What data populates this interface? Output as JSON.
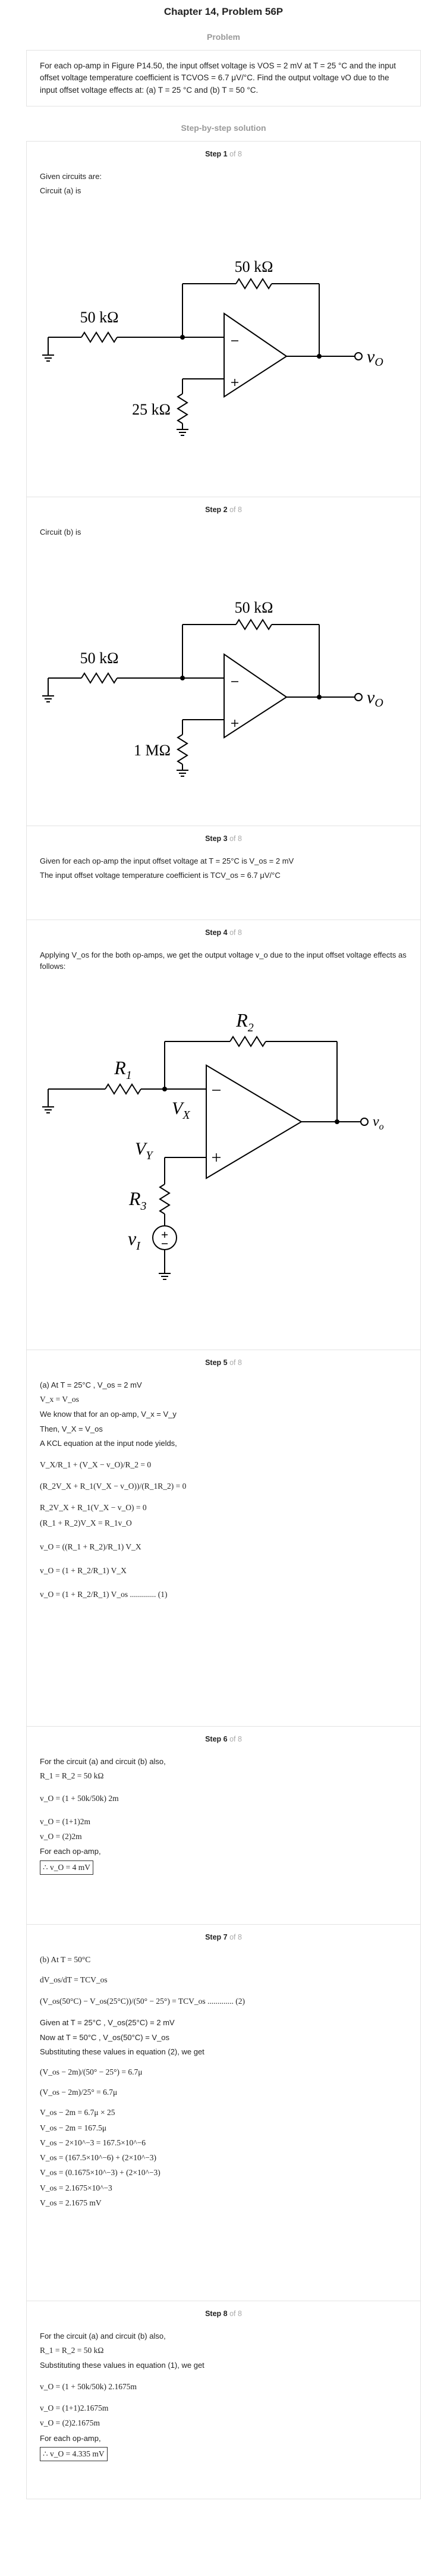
{
  "header": {
    "chapter_title": "Chapter 14, Problem 56P"
  },
  "problem": {
    "section_title": "Problem",
    "text": "For each op-amp in Figure P14.50, the input offset voltage is VOS = 2 mV at T = 25 °C and the input offset voltage temperature coefficient is TCVOS = 6.7 μV/°C. Find the output voltage vO due to the input offset voltage effects at: (a) T = 25 °C and (b) T = 50 °C."
  },
  "solution": {
    "section_title": "Step-by-step solution"
  },
  "steps": [
    {
      "label": "Step 1",
      "of": "of 8",
      "lines": [
        "Given circuits are:",
        "Circuit (a) is"
      ],
      "circuit": {
        "rf": "50 kΩ",
        "r1": "50 kΩ",
        "r3": "25 kΩ",
        "out": "v",
        "out_sub": "O"
      }
    },
    {
      "label": "Step 2",
      "of": "of 8",
      "lines": [
        "Circuit (b) is"
      ],
      "circuit": {
        "rf": "50 kΩ",
        "r1": "50 kΩ",
        "r3": "1 MΩ",
        "out": "v",
        "out_sub": "O"
      }
    },
    {
      "label": "Step 3",
      "of": "of 8",
      "lines": [
        "Given for each op-amp the input offset voltage at T = 25°C is V_os = 2 mV",
        "The input offset voltage temperature coefficient is TCV_os = 6.7 μV/°C"
      ]
    },
    {
      "label": "Step 4",
      "of": "of 8",
      "lines": [
        "Applying V_os for the both op-amps, we get the output voltage v_o due to the input offset voltage effects as follows:"
      ],
      "circuit": {
        "r2": "R",
        "r2_sub": "2",
        "r1": "R",
        "r1_sub": "1",
        "vx": "V",
        "vx_sub": "X",
        "vy": "V",
        "vy_sub": "Y",
        "r3": "R",
        "r3_sub": "3",
        "vi": "v",
        "vi_sub": "I",
        "out": "v",
        "out_sub": "o"
      }
    },
    {
      "label": "Step 5",
      "of": "of 8",
      "lines": [
        "(a) At T = 25°C , V_os = 2 mV",
        "V_x = V_os",
        "We know that for an op-amp, V_x = V_y",
        "Then, V_X = V_os",
        "A KCL equation at the input node yields,",
        "V_X/R_1 + (V_X − v_O)/R_2 = 0",
        "(R_2V_X + R_1(V_X − v_O))/(R_1R_2) = 0",
        "R_2V_X + R_1(V_X − v_O) = 0",
        "(R_1 + R_2)V_X = R_1v_O",
        "v_O = ((R_1 + R_2)/R_1) V_X",
        "v_O = (1 + R_2/R_1) V_X",
        "v_O = (1 + R_2/R_1) V_os ............. (1)"
      ]
    },
    {
      "label": "Step 6",
      "of": "of 8",
      "lines": [
        "For the circuit (a) and circuit (b) also,",
        "R_1 = R_2 = 50 kΩ",
        "v_O = (1 + 50k/50k) 2m",
        "v_O = (1+1)2m",
        "v_O = (2)2m",
        "For each op-amp,",
        "∴ v_O = 4 mV"
      ]
    },
    {
      "label": "Step 7",
      "of": "of 8",
      "lines": [
        "(b) At T = 50°C",
        "dV_os/dT = TCV_os",
        "(V_os(50°C) − V_os(25°C))/(50° − 25°) = TCV_os ............. (2)",
        "Given at T = 25°C , V_os(25°C) = 2 mV",
        "Now at T = 50°C , V_os(50°C) = V_os",
        "Substituting these values in equation (2), we get",
        "(V_os − 2m)/(50° − 25°) = 6.7μ",
        "(V_os − 2m)/25° = 6.7μ",
        "V_os − 2m = 6.7μ × 25",
        "V_os − 2m = 167.5μ",
        "V_os − 2×10^−3 = 167.5×10^−6",
        "V_os = (167.5×10^−6) + (2×10^−3)",
        "V_os = (0.1675×10^−3) + (2×10^−3)",
        "V_os = 2.1675×10^−3",
        "V_os = 2.1675 mV"
      ]
    },
    {
      "label": "Step 8",
      "of": "of 8",
      "lines": [
        "For the circuit (a) and circuit (b) also,",
        "R_1 = R_2 = 50 kΩ",
        "Substituting these values in equation (1), we get",
        "v_O = (1 + 50k/50k) 2.1675m",
        "v_O = (1+1)2.1675m",
        "v_O = (2)2.1675m",
        "For each op-amp,",
        "∴ v_O = 4.335 mV"
      ]
    }
  ]
}
